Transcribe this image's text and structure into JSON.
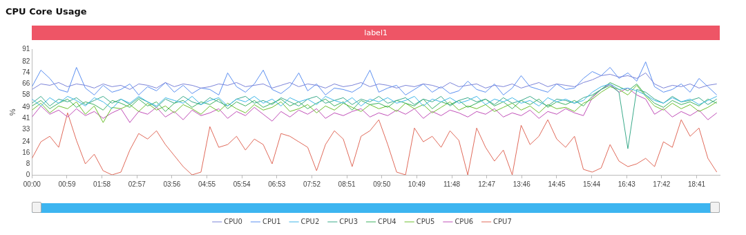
{
  "chart_data": {
    "type": "line",
    "title": "CPU Core Usage",
    "ylabel": "%",
    "x": [
      0,
      15,
      30,
      45,
      60,
      75,
      90,
      105,
      120,
      135,
      150,
      165,
      180,
      195,
      210,
      225,
      240,
      255,
      270,
      285,
      300,
      315,
      330,
      345,
      360,
      375,
      390,
      405,
      420,
      435,
      450,
      465,
      480,
      495,
      510,
      525,
      540,
      555,
      570,
      585,
      600,
      615,
      630,
      645,
      660,
      675,
      690,
      705,
      720,
      735,
      750,
      765,
      780,
      795,
      810,
      825,
      840,
      855,
      870,
      885,
      900,
      915,
      930,
      945,
      960,
      975,
      990,
      1005,
      1020,
      1035,
      1050,
      1065,
      1080,
      1095,
      1110,
      1125,
      1140,
      1155
    ],
    "xlim": [
      0,
      1160
    ],
    "xticks": [
      {
        "value": 0,
        "label": "00:00"
      },
      {
        "value": 59,
        "label": "00:59"
      },
      {
        "value": 118,
        "label": "01:58"
      },
      {
        "value": 177,
        "label": "02:57"
      },
      {
        "value": 236,
        "label": "03:56"
      },
      {
        "value": 295,
        "label": "04:55"
      },
      {
        "value": 354,
        "label": "05:54"
      },
      {
        "value": 413,
        "label": "06:53"
      },
      {
        "value": 472,
        "label": "07:52"
      },
      {
        "value": 531,
        "label": "08:51"
      },
      {
        "value": 590,
        "label": "09:50"
      },
      {
        "value": 649,
        "label": "10:49"
      },
      {
        "value": 708,
        "label": "11:48"
      },
      {
        "value": 767,
        "label": "12:47"
      },
      {
        "value": 826,
        "label": "13:46"
      },
      {
        "value": 885,
        "label": "14:45"
      },
      {
        "value": 944,
        "label": "15:44"
      },
      {
        "value": 1003,
        "label": "16:43"
      },
      {
        "value": 1062,
        "label": "17:42"
      },
      {
        "value": 1121,
        "label": "18:41"
      }
    ],
    "ylim": [
      0,
      91
    ],
    "yticks": [
      0,
      8,
      16,
      24,
      33,
      41,
      49,
      58,
      66,
      74,
      82,
      91
    ],
    "grid": false,
    "legend": "bottom",
    "annotations": [
      "label1"
    ],
    "series": [
      {
        "name": "CPU0",
        "color": "#7b83d8",
        "values": [
          62,
          66,
          65,
          67,
          64,
          66,
          65,
          63,
          66,
          64,
          65,
          62,
          66,
          65,
          63,
          67,
          64,
          66,
          65,
          63,
          64,
          66,
          65,
          67,
          64,
          65,
          66,
          63,
          65,
          67,
          64,
          66,
          65,
          63,
          66,
          64,
          65,
          67,
          64,
          66,
          65,
          63,
          65,
          64,
          66,
          65,
          63,
          67,
          64,
          65,
          66,
          63,
          65,
          64,
          66,
          63,
          65,
          67,
          64,
          66,
          65,
          64,
          67,
          69,
          72,
          73,
          71,
          72,
          70,
          74,
          66,
          63,
          65,
          64,
          66,
          63,
          65,
          66
        ]
      },
      {
        "name": "CPU1",
        "color": "#5b8ff0",
        "values": [
          64,
          76,
          70,
          62,
          60,
          78,
          63,
          58,
          65,
          60,
          62,
          66,
          58,
          64,
          61,
          67,
          60,
          65,
          59,
          63,
          62,
          58,
          74,
          64,
          60,
          66,
          76,
          62,
          59,
          64,
          74,
          61,
          66,
          58,
          63,
          62,
          60,
          64,
          76,
          60,
          63,
          65,
          58,
          62,
          66,
          60,
          64,
          59,
          61,
          68,
          62,
          60,
          66,
          58,
          63,
          72,
          64,
          62,
          60,
          66,
          62,
          63,
          70,
          75,
          72,
          78,
          70,
          74,
          68,
          82,
          64,
          60,
          62,
          66,
          60,
          70,
          64,
          58
        ]
      },
      {
        "name": "CPU2",
        "color": "#3fb6e8",
        "values": [
          55,
          50,
          56,
          52,
          57,
          54,
          50,
          56,
          53,
          48,
          55,
          52,
          57,
          53,
          50,
          56,
          54,
          52,
          57,
          51,
          54,
          56,
          50,
          55,
          53,
          57,
          52,
          55,
          50,
          56,
          53,
          55,
          51,
          57,
          54,
          52,
          56,
          50,
          55,
          53,
          56,
          52,
          54,
          57,
          50,
          55,
          53,
          56,
          52,
          54,
          57,
          51,
          55,
          53,
          56,
          52,
          54,
          50,
          56,
          53,
          55,
          52,
          54,
          60,
          64,
          66,
          62,
          63,
          61,
          58,
          54,
          52,
          56,
          53,
          55,
          51,
          54,
          57
        ]
      },
      {
        "name": "CPU3",
        "color": "#3aaa8a",
        "values": [
          52,
          57,
          50,
          55,
          53,
          56,
          51,
          54,
          57,
          52,
          55,
          51,
          56,
          53,
          49,
          55,
          52,
          57,
          53,
          51,
          56,
          53,
          50,
          55,
          57,
          52,
          54,
          51,
          56,
          53,
          50,
          55,
          57,
          52,
          54,
          56,
          51,
          55,
          53,
          57,
          52,
          54,
          56,
          51,
          55,
          53,
          57,
          50,
          54,
          56,
          53,
          55,
          51,
          56,
          52,
          54,
          57,
          53,
          50,
          55,
          54,
          52,
          56,
          58,
          62,
          65,
          60,
          19,
          62,
          60,
          55,
          52,
          57,
          53,
          54,
          56,
          51,
          55
        ]
      },
      {
        "name": "CPU4",
        "color": "#3cb15e",
        "values": [
          50,
          54,
          48,
          52,
          55,
          49,
          53,
          51,
          47,
          54,
          52,
          49,
          55,
          50,
          53,
          46,
          52,
          54,
          49,
          53,
          51,
          55,
          48,
          53,
          50,
          54,
          49,
          52,
          55,
          50,
          53,
          48,
          52,
          55,
          50,
          53,
          47,
          54,
          51,
          52,
          49,
          54,
          52,
          50,
          55,
          48,
          53,
          51,
          54,
          49,
          52,
          55,
          50,
          53,
          48,
          54,
          51,
          55,
          49,
          53,
          51,
          54,
          50,
          57,
          62,
          67,
          64,
          61,
          66,
          58,
          52,
          49,
          54,
          51,
          53,
          50,
          55,
          52
        ]
      },
      {
        "name": "CPU5",
        "color": "#6cbf2e",
        "values": [
          47,
          52,
          45,
          50,
          48,
          53,
          44,
          50,
          38,
          49,
          48,
          51,
          46,
          52,
          47,
          50,
          45,
          51,
          48,
          44,
          50,
          46,
          52,
          48,
          45,
          51,
          47,
          49,
          53,
          46,
          48,
          51,
          45,
          50,
          47,
          52,
          49,
          46,
          51,
          48,
          50,
          46,
          52,
          48,
          51,
          45,
          49,
          53,
          47,
          50,
          48,
          51,
          46,
          49,
          52,
          47,
          50,
          45,
          51,
          48,
          49,
          46,
          52,
          55,
          60,
          64,
          62,
          58,
          65,
          57,
          50,
          47,
          52,
          48,
          51,
          46,
          49,
          53
        ]
      },
      {
        "name": "CPU6",
        "color": "#c04fb8",
        "values": [
          42,
          50,
          44,
          47,
          42,
          48,
          43,
          46,
          41,
          45,
          48,
          38,
          46,
          44,
          49,
          42,
          46,
          40,
          47,
          43,
          45,
          48,
          41,
          46,
          43,
          49,
          44,
          39,
          46,
          42,
          47,
          44,
          48,
          41,
          45,
          43,
          46,
          48,
          42,
          45,
          43,
          47,
          44,
          48,
          41,
          46,
          43,
          47,
          45,
          42,
          46,
          44,
          48,
          42,
          45,
          43,
          47,
          41,
          46,
          44,
          48,
          45,
          43,
          56,
          62,
          66,
          60,
          63,
          58,
          55,
          44,
          48,
          42,
          46,
          43,
          47,
          40,
          45
        ]
      },
      {
        "name": "CPU7",
        "color": "#e06a5a",
        "values": [
          12,
          24,
          28,
          20,
          45,
          25,
          8,
          15,
          3,
          0,
          2,
          18,
          30,
          26,
          32,
          22,
          14,
          6,
          0,
          2,
          35,
          20,
          22,
          28,
          18,
          26,
          22,
          8,
          30,
          28,
          24,
          20,
          3,
          22,
          32,
          26,
          6,
          28,
          32,
          40,
          22,
          2,
          0,
          34,
          24,
          28,
          20,
          32,
          25,
          0,
          34,
          20,
          10,
          18,
          0,
          36,
          22,
          28,
          40,
          26,
          20,
          28,
          4,
          2,
          5,
          22,
          10,
          6,
          8,
          12,
          6,
          24,
          20,
          40,
          28,
          34,
          12,
          2
        ]
      }
    ]
  }
}
